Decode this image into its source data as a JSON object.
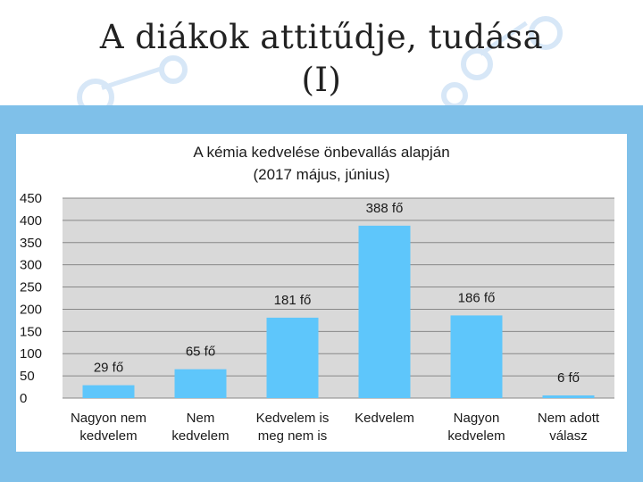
{
  "slide": {
    "title_line1": "A diákok attitűdje, tudása",
    "title_line2": "(I)"
  },
  "colors": {
    "bar": "#5ec6fb",
    "band": "#7fc0e9",
    "grid": "#888888",
    "plot_bg": "#d9d9d9"
  },
  "chart_data": {
    "type": "bar",
    "title_line1": "A kémia kedvelése önbevallás alapján",
    "title_line2": "(2017 május, június)",
    "categories": [
      [
        "Nagyon nem",
        "kedvelem"
      ],
      [
        "Nem",
        "kedvelem"
      ],
      [
        "Kedvelem is",
        "meg nem is"
      ],
      [
        "Kedvelem"
      ],
      [
        "Nagyon",
        "kedvelem"
      ],
      [
        "Nem adott",
        "válasz"
      ]
    ],
    "values": [
      29,
      65,
      181,
      388,
      186,
      6
    ],
    "data_labels": [
      "29 fő",
      "65 fő",
      "181 fő",
      "388 fő",
      "186 fő",
      "6 fő"
    ],
    "ylim": [
      0,
      450
    ],
    "yticks": [
      "0",
      "50",
      "100",
      "150",
      "200",
      "250",
      "300",
      "350",
      "400",
      "450"
    ],
    "grid": true,
    "legend": "none"
  }
}
